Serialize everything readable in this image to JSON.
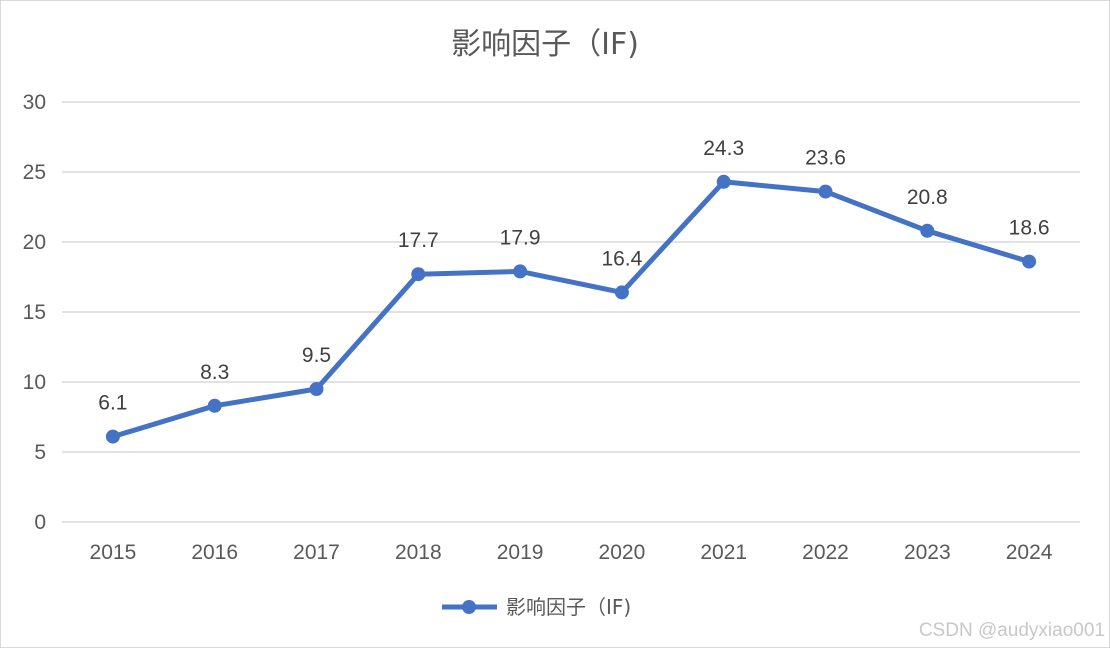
{
  "chart_data": {
    "type": "line",
    "title": "影响因子（IF)",
    "xlabel": "",
    "ylabel": "",
    "categories": [
      "2015",
      "2016",
      "2017",
      "2018",
      "2019",
      "2020",
      "2021",
      "2022",
      "2023",
      "2024"
    ],
    "series": [
      {
        "name": "影响因子（IF)",
        "values": [
          6.1,
          8.3,
          9.5,
          17.7,
          17.9,
          16.4,
          24.3,
          23.6,
          20.8,
          18.6
        ],
        "labels": [
          "6.1",
          "8.3",
          "9.5",
          "17.7",
          "17.9",
          "16.4",
          "24.3",
          "23.6",
          "20.8",
          "18.6"
        ],
        "color": "#4472c4"
      }
    ],
    "ylim": [
      0,
      30
    ],
    "yticks": [
      "0",
      "5",
      "10",
      "15",
      "20",
      "25",
      "30"
    ],
    "grid": true,
    "legend_position": "bottom"
  },
  "watermark": "CSDN @audyxiao001",
  "colors": {
    "series": "#4472c4",
    "grid": "#d9d9d9",
    "text": "#595959"
  }
}
